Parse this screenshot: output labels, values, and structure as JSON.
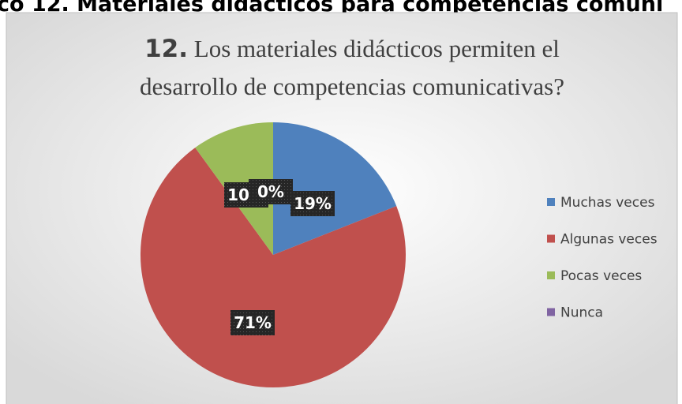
{
  "header": "co 12. Materiales didácticos para competencias comuni",
  "chart_data": {
    "type": "pie",
    "title": {
      "number": "12.",
      "lines": [
        "Los materiales didácticos permiten el",
        "desarrollo de competencias comunicativas?"
      ]
    },
    "categories": [
      "Muchas veces",
      "Algunas veces",
      "Pocas veces",
      "Nunca"
    ],
    "values": [
      19,
      71,
      10,
      0
    ],
    "value_labels": [
      "19%",
      "71%",
      "10%",
      "0%"
    ],
    "colors": [
      "#4f81bd",
      "#c0504d",
      "#9bbb59",
      "#8064a2"
    ],
    "legend": "right"
  }
}
